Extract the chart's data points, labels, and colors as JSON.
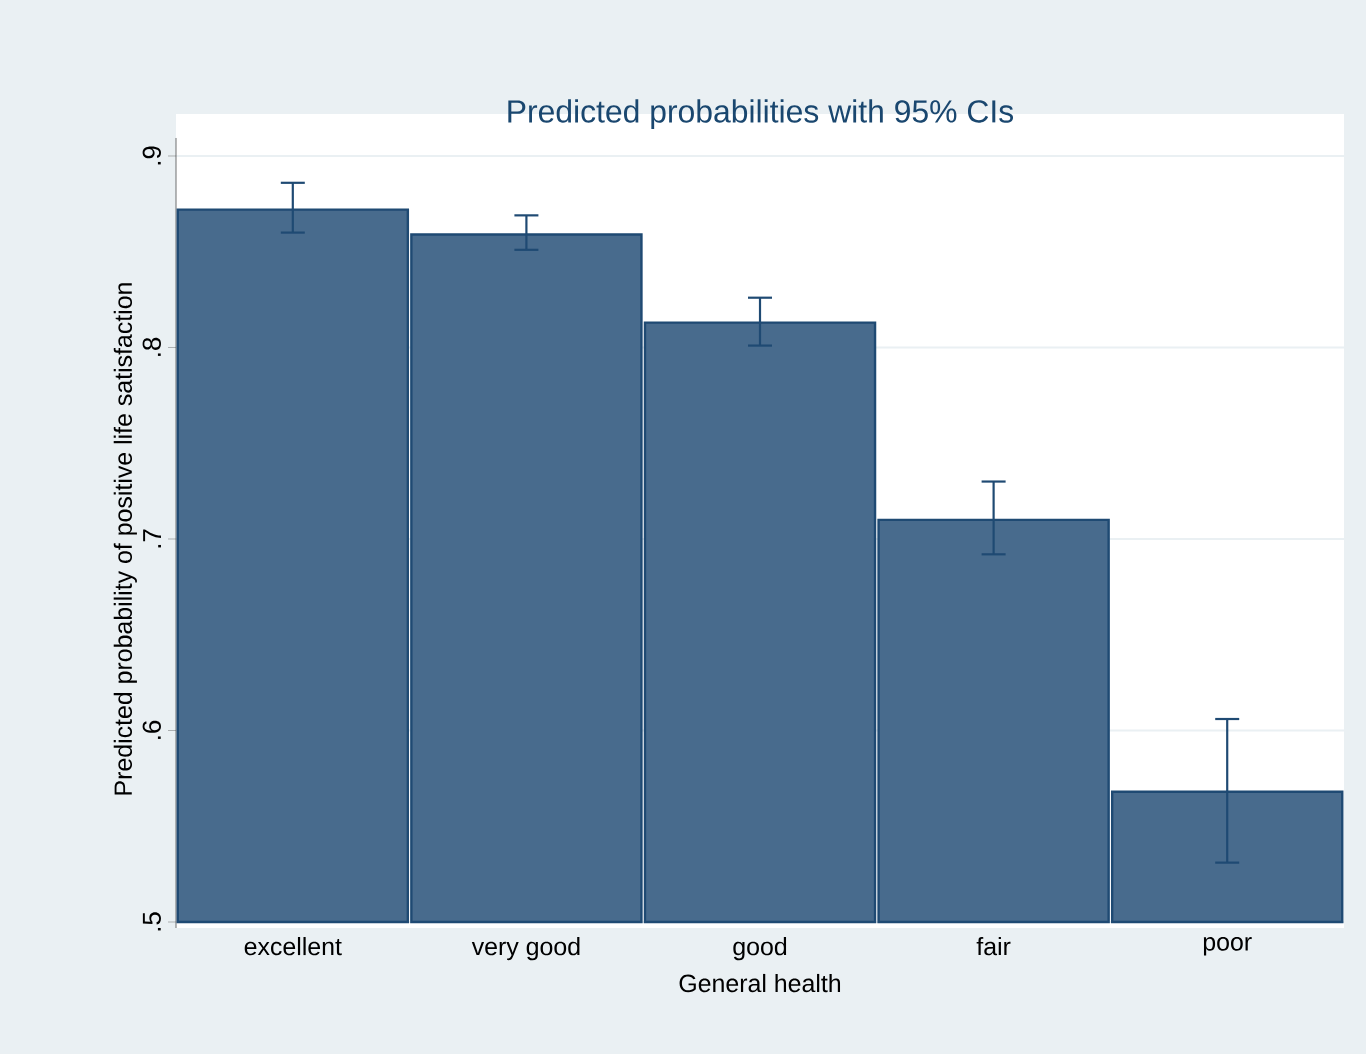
{
  "chart_data": {
    "type": "bar",
    "title": "Predicted probabilities with 95% CIs",
    "xlabel": "General health",
    "ylabel": "Predicted probability of positive life satisfaction",
    "categories": [
      "excellent",
      "very good",
      "good",
      "fair",
      "poor"
    ],
    "values": [
      0.872,
      0.859,
      0.813,
      0.71,
      0.568
    ],
    "errors": [
      [
        0.86,
        0.886
      ],
      [
        0.851,
        0.869
      ],
      [
        0.801,
        0.826
      ],
      [
        0.692,
        0.73
      ],
      [
        0.531,
        0.606
      ]
    ],
    "color": "#486b8d",
    "ylim": [
      0.5,
      0.9
    ],
    "yticks": [
      {
        "value": 0.5,
        "label": ".5"
      },
      {
        "value": 0.6,
        "label": ".6"
      },
      {
        "value": 0.7,
        "label": ".7"
      },
      {
        "value": 0.8,
        "label": ".8"
      },
      {
        "value": 0.9,
        "label": ".9"
      }
    ],
    "grid": "y"
  }
}
